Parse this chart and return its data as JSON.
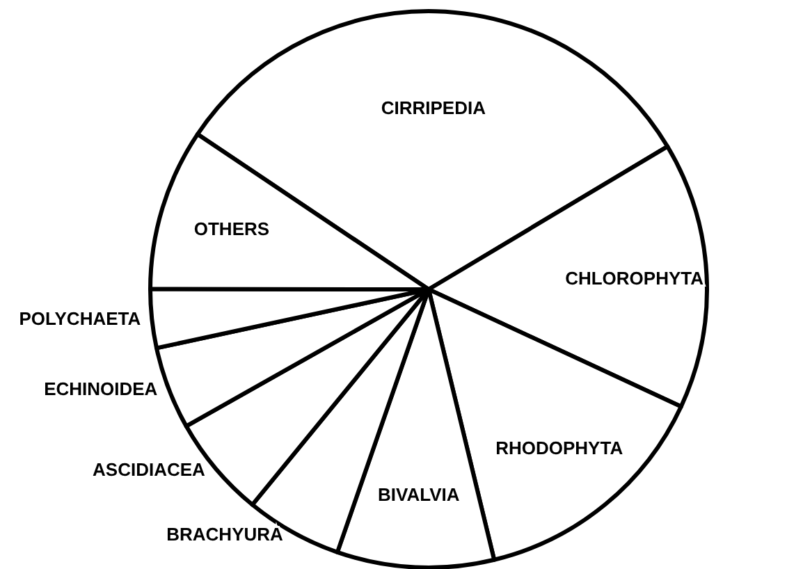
{
  "chart_data": {
    "type": "pie",
    "categories": [
      "CIRRIPEDIA",
      "CHLOROPHYTA",
      "RHODOPHYTA",
      "BIVALVIA",
      "BRACHYURA",
      "ASCIDIACEA",
      "ECHINOIDEA",
      "POLYCHAETA",
      "OTHERS"
    ],
    "values": [
      32.0,
      15.5,
      14.3,
      9.1,
      5.6,
      5.9,
      4.8,
      3.4,
      9.4
    ],
    "colors": [
      "#ffffff",
      "#ffffff",
      "#ffffff",
      "#ffffff",
      "#ffffff",
      "#ffffff",
      "#ffffff",
      "#ffffff",
      "#ffffff"
    ]
  }
}
